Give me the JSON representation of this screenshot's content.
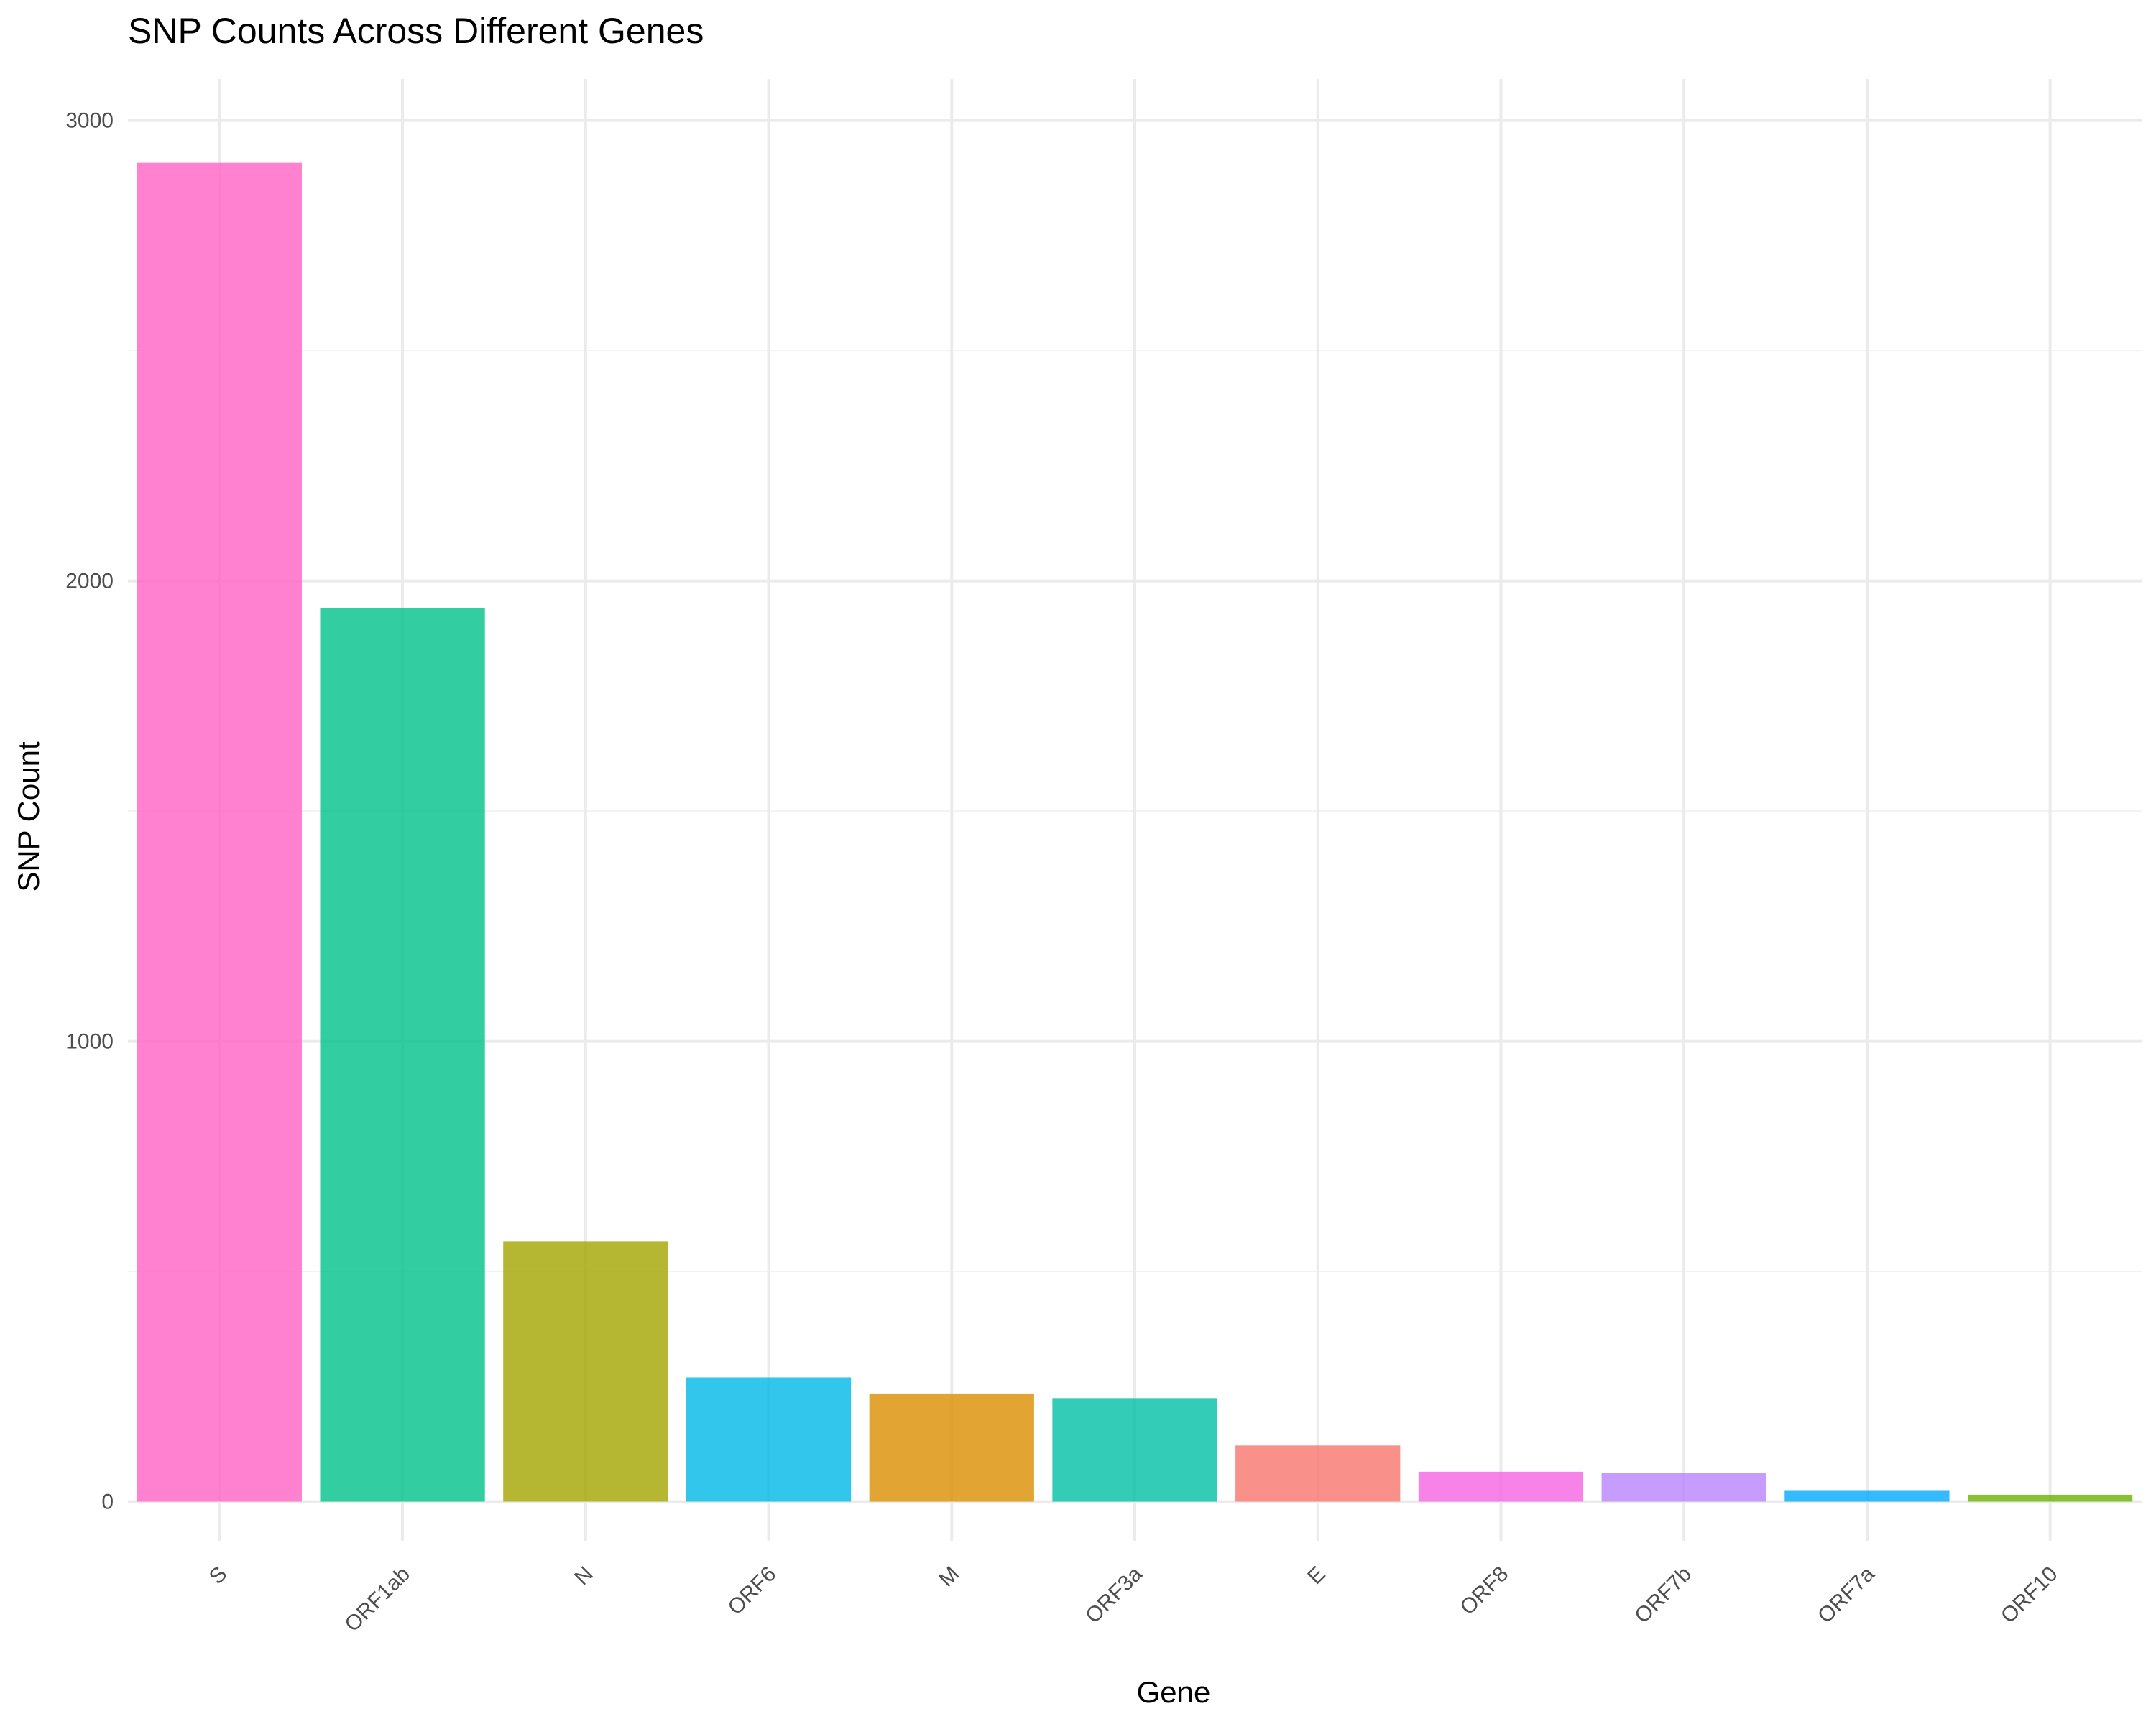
{
  "chart_data": {
    "type": "bar",
    "title": "SNP Counts Across Different Genes",
    "xlabel": "Gene",
    "ylabel": "SNP Count",
    "categories": [
      "S",
      "ORF1ab",
      "N",
      "ORF6",
      "M",
      "ORF3a",
      "E",
      "ORF8",
      "ORF7b",
      "ORF7a",
      "ORF10"
    ],
    "values": [
      2908,
      1941,
      565,
      270,
      235,
      225,
      122,
      65,
      62,
      25,
      15
    ],
    "colors": [
      "#FF61C3",
      "#00C08B",
      "#A3A500",
      "#00B8E7",
      "#DB8E00",
      "#00BFA5",
      "#F8766D",
      "#F564E3",
      "#B983FF",
      "#00A9FF",
      "#6BB100"
    ],
    "y_ticks": [
      0,
      1000,
      2000,
      3000
    ],
    "y_tick_labels": [
      "0",
      "1000",
      "2000",
      "3000"
    ],
    "ylim": [
      -85,
      3090
    ],
    "grid": true,
    "legend": "none"
  }
}
